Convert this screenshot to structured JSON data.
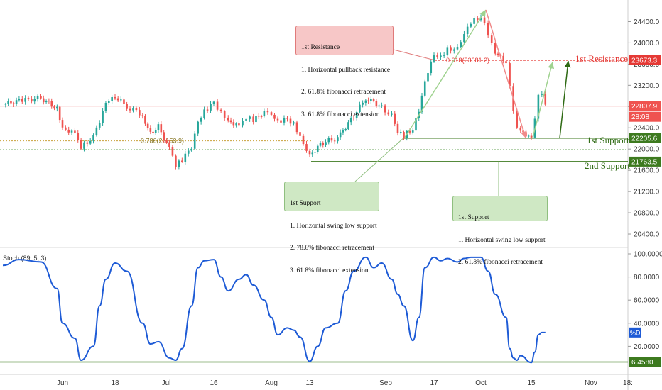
{
  "chart_data": [
    {
      "type": "candlestick",
      "title": "",
      "ylim": [
        20200,
        24700
      ],
      "y_ticks": [
        "24400.0",
        "24000.0",
        "23600.0",
        "23200.0",
        "22800.0",
        "22400.0",
        "22000.0",
        "21600.0",
        "21200.0",
        "20800.0",
        "20400.0"
      ],
      "y_tick_values": [
        24400,
        24000,
        23600,
        23200,
        22800,
        22400,
        22000,
        21600,
        21200,
        20800,
        20400
      ],
      "x_ticks": [
        "Jun",
        "18",
        "Jul",
        "16",
        "Aug",
        "13",
        "Sep",
        "17",
        "Oct",
        "15",
        "Nov",
        "18:"
      ],
      "price_series": [
        {
          "x": "May 21",
          "y": 22840
        },
        {
          "x": "May 24",
          "y": 22910
        },
        {
          "x": "May 28",
          "y": 22960
        },
        {
          "x": "May 31",
          "y": 22760
        },
        {
          "x": "Jun 1",
          "y": 22420
        },
        {
          "x": "Jun 5",
          "y": 22280
        },
        {
          "x": "Jun 7",
          "y": 22050
        },
        {
          "x": "Jun 11",
          "y": 22220
        },
        {
          "x": "Jun 13",
          "y": 22500
        },
        {
          "x": "Jun 15",
          "y": 22850
        },
        {
          "x": "Jun 18",
          "y": 22980
        },
        {
          "x": "Jun 21",
          "y": 22800
        },
        {
          "x": "Jun 25",
          "y": 22640
        },
        {
          "x": "Jun 27",
          "y": 22280
        },
        {
          "x": "Jun 29",
          "y": 22430
        },
        {
          "x": "Jul 2",
          "y": 22000
        },
        {
          "x": "Jul 4",
          "y": 21700
        },
        {
          "x": "Jul 6",
          "y": 21780
        },
        {
          "x": "Jul 9",
          "y": 22050
        },
        {
          "x": "Jul 11",
          "y": 22480
        },
        {
          "x": "Jul 13",
          "y": 22700
        },
        {
          "x": "Jul 16",
          "y": 22870
        },
        {
          "x": "Jul 18",
          "y": 22700
        },
        {
          "x": "Jul 20",
          "y": 22560
        },
        {
          "x": "Jul 23",
          "y": 22420
        },
        {
          "x": "Jul 25",
          "y": 22610
        },
        {
          "x": "Jul 27",
          "y": 22540
        },
        {
          "x": "Jul 30",
          "y": 22700
        },
        {
          "x": "Aug 1",
          "y": 22620
        },
        {
          "x": "Aug 3",
          "y": 22500
        },
        {
          "x": "Aug 6",
          "y": 22560
        },
        {
          "x": "Aug 8",
          "y": 22480
        },
        {
          "x": "Aug 10",
          "y": 22250
        },
        {
          "x": "Aug 13",
          "y": 21870
        },
        {
          "x": "Aug 15",
          "y": 22050
        },
        {
          "x": "Aug 17",
          "y": 22150
        },
        {
          "x": "Aug 20",
          "y": 22200
        },
        {
          "x": "Aug 22",
          "y": 22420
        },
        {
          "x": "Aug 24",
          "y": 22620
        },
        {
          "x": "Aug 27",
          "y": 22960
        },
        {
          "x": "Aug 29",
          "y": 22880
        },
        {
          "x": "Aug 31",
          "y": 22780
        },
        {
          "x": "Sep 3",
          "y": 22620
        },
        {
          "x": "Sep 5",
          "y": 22350
        },
        {
          "x": "Sep 7",
          "y": 22260
        },
        {
          "x": "Sep 10",
          "y": 22380
        },
        {
          "x": "Sep 12",
          "y": 22700
        },
        {
          "x": "Sep 14",
          "y": 23250
        },
        {
          "x": "Sep 17",
          "y": 23780
        },
        {
          "x": "Sep 19",
          "y": 23720
        },
        {
          "x": "Sep 21",
          "y": 23900
        },
        {
          "x": "Sep 24",
          "y": 23880
        },
        {
          "x": "Sep 26",
          "y": 24200
        },
        {
          "x": "Sep 28",
          "y": 24400
        },
        {
          "x": "Oct 1",
          "y": 24500
        },
        {
          "x": "Oct 3",
          "y": 24150
        },
        {
          "x": "Oct 5",
          "y": 23780
        },
        {
          "x": "Oct 8",
          "y": 23650
        },
        {
          "x": "Oct 9",
          "y": 23200
        },
        {
          "x": "Oct 10",
          "y": 22750
        },
        {
          "x": "Oct 11",
          "y": 22450
        },
        {
          "x": "Oct 12",
          "y": 22380
        },
        {
          "x": "Oct 15",
          "y": 22180
        },
        {
          "x": "Oct 16",
          "y": 22550
        },
        {
          "x": "Oct 17",
          "y": 22980
        },
        {
          "x": "Oct 18",
          "y": 23000
        },
        {
          "x": "Oct 19",
          "y": 22808
        }
      ],
      "levels": [
        {
          "name": "1st Resistance",
          "value": 23673.3
        },
        {
          "name": "1st Support",
          "value": 22205.6
        },
        {
          "name": "2nd Support",
          "value": 21763.5
        },
        {
          "name": "current",
          "value": 22807.9
        }
      ],
      "fib_labels": [
        "0.618(23681.2)",
        "0.786(22153.9)"
      ],
      "price_badge": "22807.9",
      "countdown": "28:08",
      "level_badges": {
        "resistance": "23673.3",
        "support1": "22205.6",
        "support2": "21763.5"
      },
      "annotations": {
        "resistance_note": [
          "1st Resistance",
          "1. Horizontal pullback resistance",
          "2. 61.8% fibonacci retracement",
          "3. 61.8% fibonacci extension"
        ],
        "support_note_left": [
          "1st Support",
          "1. Horizontal swing low support",
          "2. 78.6% fibonacci retracement",
          "3. 61.8% fibonacci extension"
        ],
        "support_note_right": [
          "1st Support",
          "1. Horizontal swing low support",
          "2. 61.8% fibonacci retracement"
        ]
      },
      "line_labels": {
        "resistance": "1st Resistance",
        "support1": "1st Support",
        "support2": "2nd Support"
      },
      "colors": {
        "up": "#26a69a",
        "down": "#ef5350",
        "resistance": "#e53935",
        "support": "#3d7a1f"
      }
    },
    {
      "type": "line",
      "title": "Stoch (89, 5, 3)",
      "ylim": [
        0,
        100
      ],
      "y_ticks": [
        "100.0000",
        "80.0000",
        "60.0000",
        "40.0000",
        "20.0000"
      ],
      "y_tick_values": [
        100,
        80,
        60,
        40,
        20
      ],
      "series": [
        {
          "name": "%D",
          "points": [
            {
              "x": "May 21",
              "y": 90
            },
            {
              "x": "May 24",
              "y": 95
            },
            {
              "x": "May 28",
              "y": 93
            },
            {
              "x": "May 31",
              "y": 70
            },
            {
              "x": "Jun 1",
              "y": 40
            },
            {
              "x": "Jun 5",
              "y": 27
            },
            {
              "x": "Jun 7",
              "y": 8
            },
            {
              "x": "Jun 11",
              "y": 20
            },
            {
              "x": "Jun 13",
              "y": 55
            },
            {
              "x": "Jun 15",
              "y": 78
            },
            {
              "x": "Jun 18",
              "y": 92
            },
            {
              "x": "Jun 21",
              "y": 85
            },
            {
              "x": "Jun 25",
              "y": 40
            },
            {
              "x": "Jun 27",
              "y": 22
            },
            {
              "x": "Jun 29",
              "y": 24
            },
            {
              "x": "Jul 2",
              "y": 10
            },
            {
              "x": "Jul 4",
              "y": 8
            },
            {
              "x": "Jul 6",
              "y": 18
            },
            {
              "x": "Jul 9",
              "y": 55
            },
            {
              "x": "Jul 11",
              "y": 88
            },
            {
              "x": "Jul 13",
              "y": 94
            },
            {
              "x": "Jul 16",
              "y": 95
            },
            {
              "x": "Jul 18",
              "y": 80
            },
            {
              "x": "Jul 20",
              "y": 68
            },
            {
              "x": "Jul 23",
              "y": 78
            },
            {
              "x": "Jul 25",
              "y": 82
            },
            {
              "x": "Jul 27",
              "y": 73
            },
            {
              "x": "Jul 30",
              "y": 60
            },
            {
              "x": "Aug 1",
              "y": 45
            },
            {
              "x": "Aug 3",
              "y": 30
            },
            {
              "x": "Aug 6",
              "y": 36
            },
            {
              "x": "Aug 8",
              "y": 34
            },
            {
              "x": "Aug 10",
              "y": 28
            },
            {
              "x": "Aug 13",
              "y": 7
            },
            {
              "x": "Aug 15",
              "y": 20
            },
            {
              "x": "Aug 17",
              "y": 36
            },
            {
              "x": "Aug 20",
              "y": 40
            },
            {
              "x": "Aug 22",
              "y": 68
            },
            {
              "x": "Aug 24",
              "y": 85
            },
            {
              "x": "Aug 27",
              "y": 97
            },
            {
              "x": "Aug 29",
              "y": 88
            },
            {
              "x": "Aug 31",
              "y": 92
            },
            {
              "x": "Sep 3",
              "y": 78
            },
            {
              "x": "Sep 5",
              "y": 65
            },
            {
              "x": "Sep 7",
              "y": 55
            },
            {
              "x": "Sep 10",
              "y": 25
            },
            {
              "x": "Sep 12",
              "y": 45
            },
            {
              "x": "Sep 14",
              "y": 88
            },
            {
              "x": "Sep 17",
              "y": 97
            },
            {
              "x": "Sep 19",
              "y": 94
            },
            {
              "x": "Sep 21",
              "y": 96
            },
            {
              "x": "Sep 24",
              "y": 93
            },
            {
              "x": "Sep 26",
              "y": 96
            },
            {
              "x": "Sep 28",
              "y": 97
            },
            {
              "x": "Oct 1",
              "y": 97
            },
            {
              "x": "Oct 3",
              "y": 85
            },
            {
              "x": "Oct 5",
              "y": 65
            },
            {
              "x": "Oct 8",
              "y": 45
            },
            {
              "x": "Oct 9",
              "y": 18
            },
            {
              "x": "Oct 10",
              "y": 10
            },
            {
              "x": "Oct 11",
              "y": 8
            },
            {
              "x": "Oct 12",
              "y": 12
            },
            {
              "x": "Oct 15",
              "y": 6
            },
            {
              "x": "Oct 16",
              "y": 15
            },
            {
              "x": "Oct 17",
              "y": 30
            },
            {
              "x": "Oct 18",
              "y": 32
            },
            {
              "x": "Oct 19",
              "y": 32
            }
          ]
        }
      ],
      "reference_level": 6.458,
      "level_badge": "6.4580",
      "d_badge": "%D",
      "colors": {
        "line": "#1e5bd6",
        "reference": "#3d7a1f"
      }
    }
  ]
}
